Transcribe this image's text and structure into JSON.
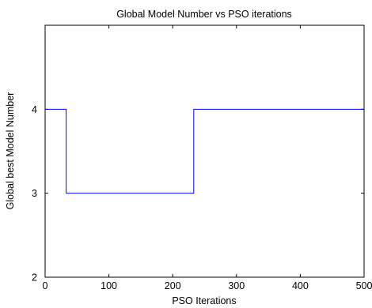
{
  "chart_data": {
    "type": "line",
    "title": "Global Model Number vs PSO iterations",
    "xlabel": "PSO Iterations",
    "ylabel": "Global best Model Number",
    "xlim": [
      0,
      500
    ],
    "ylim": [
      2,
      5
    ],
    "x_ticks": [
      0,
      100,
      200,
      300,
      400,
      500
    ],
    "y_ticks": [
      2,
      3,
      4
    ],
    "grid": false,
    "series_color": "#0000ff",
    "series": [
      {
        "step": "post",
        "x": [
          0,
          33,
          233,
          500
        ],
        "y": [
          4,
          3,
          4,
          4
        ]
      }
    ]
  }
}
